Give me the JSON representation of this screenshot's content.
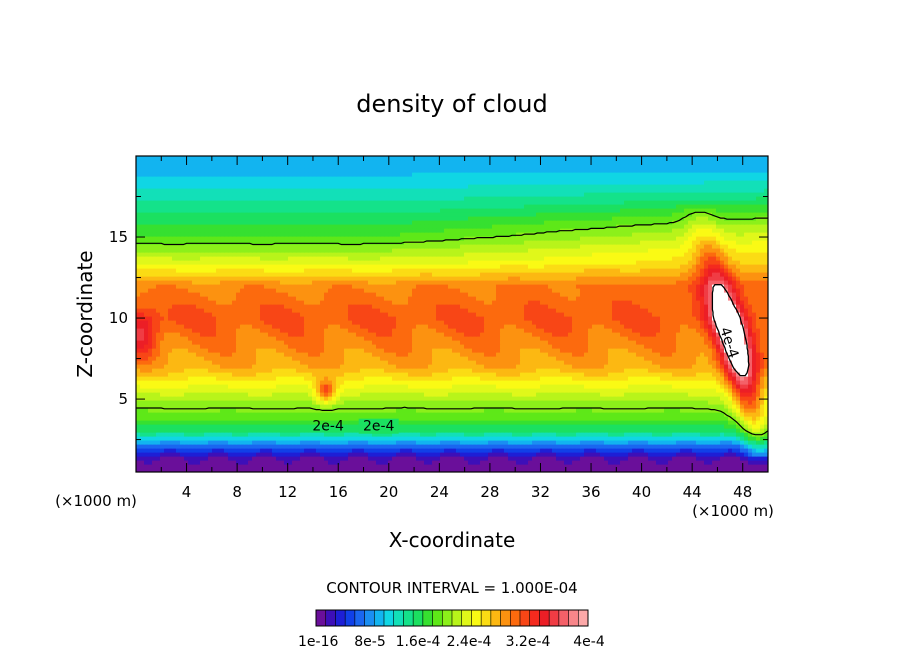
{
  "chart_data": {
    "type": "heatmap",
    "title": "density of cloud",
    "xlabel": "X-coordinate",
    "ylabel": "Z-coordinate",
    "x_unit_left": "(×1000 m)",
    "x_unit_right": "(×1000 m)",
    "xlim": [
      0,
      50
    ],
    "ylim": [
      0.5,
      20
    ],
    "xticks": [
      4,
      8,
      12,
      16,
      20,
      24,
      28,
      32,
      36,
      40,
      44,
      48
    ],
    "yticks": [
      5,
      10,
      15
    ],
    "contour_interval_text": "CONTOUR INTERVAL = 1.000E-04",
    "contour_labels": [
      "2e-4",
      "2e-4",
      "4e-4"
    ],
    "colorbar": {
      "tick_labels": [
        "1e-16",
        "8e-5",
        "1.6e-4",
        "2.4e-4",
        "3.2e-4",
        "4e-4"
      ],
      "colors": [
        "#6a0f9a",
        "#3d0fb8",
        "#1d1fd6",
        "#1040e8",
        "#1a66f0",
        "#1a8ef2",
        "#12b4f0",
        "#10d6e4",
        "#12e0b8",
        "#14e28a",
        "#1be060",
        "#36e030",
        "#5ee818",
        "#8cf01a",
        "#b8f41a",
        "#e0f81a",
        "#fafa14",
        "#fbdc14",
        "#fcb812",
        "#fc9210",
        "#fc6a0e",
        "#f84616",
        "#f42a1e",
        "#ec1e26",
        "#f03c44",
        "#f46068",
        "#f8868a",
        "#fca8a8"
      ]
    },
    "levels": [
      {
        "z": 1.2,
        "value": 5e-06
      },
      {
        "z": 2.0,
        "value": 6e-05
      },
      {
        "z": 3.0,
        "value": 0.00015
      },
      {
        "z": 4.0,
        "value": 0.00019
      },
      {
        "z": 5.0,
        "value": 0.000215
      },
      {
        "z": 7.0,
        "value": 0.000285
      },
      {
        "z": 10.0,
        "value": 0.00032
      },
      {
        "z": 12.0,
        "value": 0.0003
      },
      {
        "z": 13.5,
        "value": 0.000235
      },
      {
        "z": 15.0,
        "value": 0.000185
      },
      {
        "z": 17.0,
        "value": 0.00014
      },
      {
        "z": 19.5,
        "value": 9.5e-05
      }
    ],
    "features": [
      {
        "name": "convective-tower",
        "x": 45.5,
        "z_range": [
          1.5,
          17
        ],
        "peak_value": 0.00042
      },
      {
        "name": "left-edge-maximum",
        "x": 0.5,
        "z": 9.0,
        "value": 0.00037
      },
      {
        "name": "updraft-near-x15",
        "x": 15,
        "z": 5.5,
        "value": 0.00038
      }
    ]
  }
}
